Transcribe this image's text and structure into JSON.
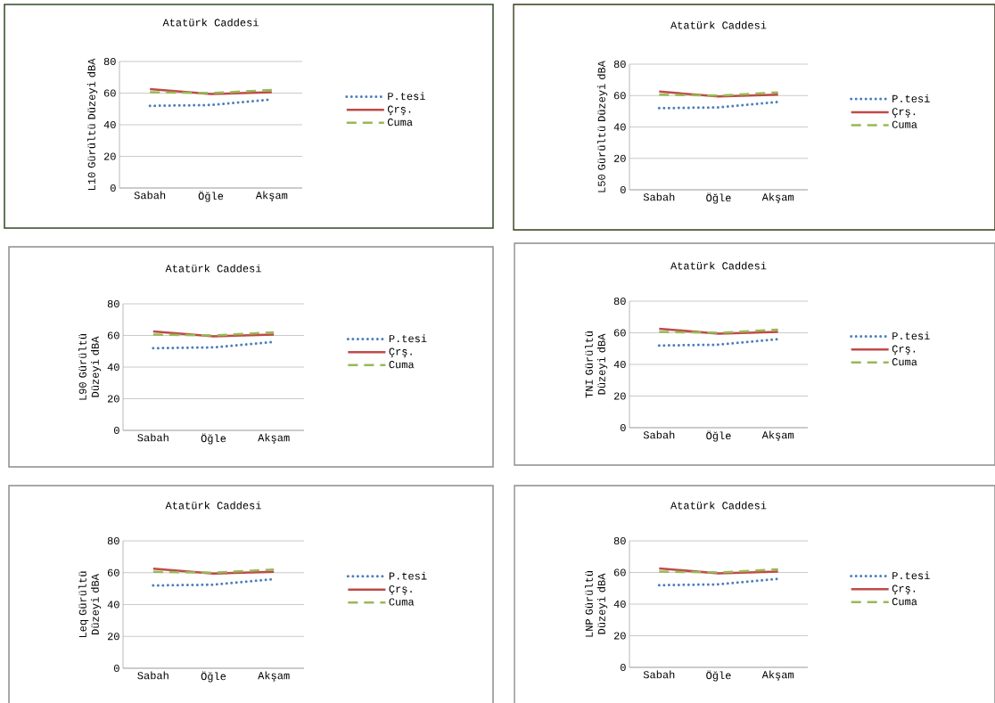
{
  "chart_data": [
    {
      "type": "line",
      "title": "Atatürk Caddesi",
      "ylabel": "L10 Gürültü Düzeyi dBA",
      "categories": [
        "Sabah",
        "Öğle",
        "Akşam"
      ],
      "ylim": [
        0,
        80
      ],
      "yticks": [
        0,
        20,
        40,
        60,
        80
      ],
      "grid": "y",
      "legend": "right",
      "series": [
        {
          "name": "P.tesi",
          "color": "#4a7ebb",
          "line_style": "dotted",
          "values": [
            52,
            52.5,
            56
          ]
        },
        {
          "name": "Çrş.",
          "color": "#be4b48",
          "line_style": "solid",
          "values": [
            62.5,
            59.5,
            60.5
          ]
        },
        {
          "name": "Cuma",
          "color": "#98b954",
          "line_style": "dashed",
          "values": [
            60.5,
            60,
            62
          ]
        }
      ]
    },
    {
      "type": "line",
      "title": "Atatürk Caddesi",
      "ylabel": "L50 Gürültü Düzeyi dBA",
      "categories": [
        "Sabah",
        "Öğle",
        "Akşam"
      ],
      "ylim": [
        0,
        80
      ],
      "yticks": [
        0,
        20,
        40,
        60,
        80
      ],
      "grid": "y",
      "legend": "right",
      "series": [
        {
          "name": "P.tesi",
          "color": "#4a7ebb",
          "line_style": "dotted",
          "values": [
            52,
            52.5,
            56
          ]
        },
        {
          "name": "Çrş.",
          "color": "#be4b48",
          "line_style": "solid",
          "values": [
            62.5,
            59.5,
            60.5
          ]
        },
        {
          "name": "Cuma",
          "color": "#98b954",
          "line_style": "dashed",
          "values": [
            60.5,
            60,
            62
          ]
        }
      ]
    },
    {
      "type": "line",
      "title": "Atatürk Caddesi",
      "ylabel": "L90 Gürültü Düzeyi dBA",
      "categories": [
        "Sabah",
        "Öğle",
        "Akşam"
      ],
      "ylim": [
        0,
        80
      ],
      "yticks": [
        0,
        20,
        40,
        60,
        80
      ],
      "grid": "y",
      "legend": "right",
      "series": [
        {
          "name": "P.tesi",
          "color": "#4a7ebb",
          "line_style": "dotted",
          "values": [
            52,
            52.5,
            56
          ]
        },
        {
          "name": "Çrş.",
          "color": "#be4b48",
          "line_style": "solid",
          "values": [
            62.5,
            59.5,
            60.5
          ]
        },
        {
          "name": "Cuma",
          "color": "#98b954",
          "line_style": "dashed",
          "values": [
            60.5,
            60,
            62
          ]
        }
      ]
    },
    {
      "type": "line",
      "title": "Atatürk Caddesi",
      "ylabel": "TNI Gürültü Düzeyi dBA",
      "categories": [
        "Sabah",
        "Öğle",
        "Akşam"
      ],
      "ylim": [
        0,
        80
      ],
      "yticks": [
        0,
        20,
        40,
        60,
        80
      ],
      "grid": "y",
      "legend": "right",
      "series": [
        {
          "name": "P.tesi",
          "color": "#4a7ebb",
          "line_style": "dotted",
          "values": [
            52,
            52.5,
            56
          ]
        },
        {
          "name": "Çrş.",
          "color": "#be4b48",
          "line_style": "solid",
          "values": [
            62.5,
            59.5,
            60.5
          ]
        },
        {
          "name": "Cuma",
          "color": "#98b954",
          "line_style": "dashed",
          "values": [
            60.5,
            60,
            62
          ]
        }
      ]
    },
    {
      "type": "line",
      "title": "Atatürk Caddesi",
      "ylabel": "Leq Gürültü Düzeyi dBA",
      "categories": [
        "Sabah",
        "Öğle",
        "Akşam"
      ],
      "ylim": [
        0,
        80
      ],
      "yticks": [
        0,
        20,
        40,
        60,
        80
      ],
      "grid": "y",
      "legend": "right",
      "series": [
        {
          "name": "P.tesi",
          "color": "#4a7ebb",
          "line_style": "dotted",
          "values": [
            52,
            52.5,
            56
          ]
        },
        {
          "name": "Çrş.",
          "color": "#be4b48",
          "line_style": "solid",
          "values": [
            62.5,
            59.5,
            60.5
          ]
        },
        {
          "name": "Cuma",
          "color": "#98b954",
          "line_style": "dashed",
          "values": [
            60.5,
            60,
            62
          ]
        }
      ]
    },
    {
      "type": "line",
      "title": "Atatürk Caddesi",
      "ylabel": "LNP Gürültü Düzeyi dBA",
      "categories": [
        "Sabah",
        "Öğle",
        "Akşam"
      ],
      "ylim": [
        0,
        80
      ],
      "yticks": [
        0,
        20,
        40,
        60,
        80
      ],
      "grid": "y",
      "legend": "right",
      "series": [
        {
          "name": "P.tesi",
          "color": "#4a7ebb",
          "line_style": "dotted",
          "values": [
            52,
            52.5,
            56
          ]
        },
        {
          "name": "Çrş.",
          "color": "#be4b48",
          "line_style": "solid",
          "values": [
            62.5,
            59.5,
            60.5
          ]
        },
        {
          "name": "Cuma",
          "color": "#98b954",
          "line_style": "dashed",
          "values": [
            60.5,
            60,
            62
          ]
        }
      ]
    }
  ]
}
